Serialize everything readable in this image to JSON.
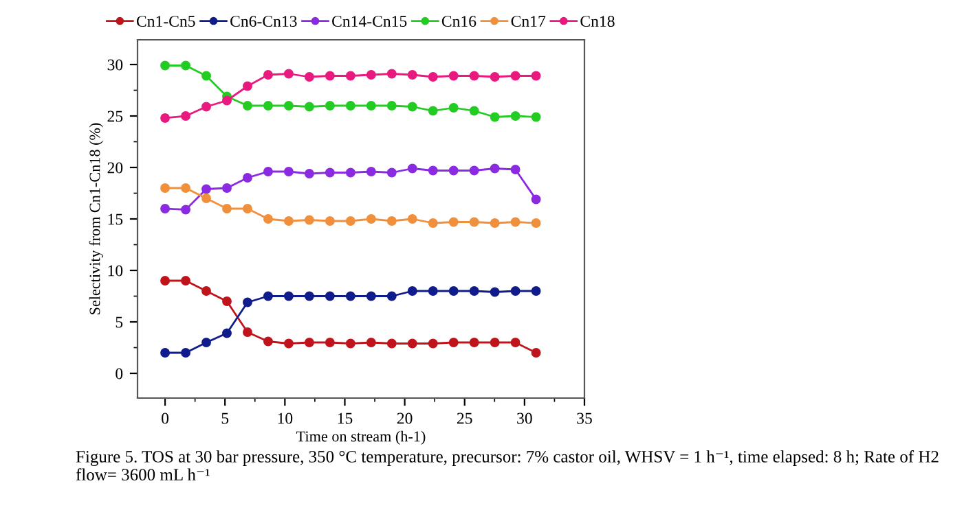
{
  "chart_data": {
    "type": "line",
    "xlabel": "Time on stream (h-1)",
    "ylabel": "Selectivity from Cn1-Cn18 (%)",
    "x": [
      0,
      1.72,
      3.44,
      5.16,
      6.88,
      8.6,
      10.32,
      12.04,
      13.76,
      15.48,
      17.2,
      18.92,
      20.64,
      22.36,
      24.08,
      25.8,
      27.52,
      29.24,
      30.96
    ],
    "series": [
      {
        "name": "Cn1-Cn5",
        "color": "#c0141c",
        "values": [
          9,
          9,
          8,
          7,
          4,
          3.1,
          2.9,
          3,
          3,
          2.9,
          3,
          2.9,
          2.9,
          2.9,
          3,
          3,
          3,
          3,
          2
        ]
      },
      {
        "name": "Cn6-Cn13",
        "color": "#101c8c",
        "values": [
          2,
          2,
          3,
          3.9,
          6.9,
          7.5,
          7.5,
          7.5,
          7.5,
          7.5,
          7.5,
          7.5,
          8,
          8,
          8,
          8,
          7.9,
          8,
          8
        ]
      },
      {
        "name": "Cn14-Cn15",
        "color": "#8a2be2",
        "values": [
          16,
          15.9,
          17.9,
          18,
          19,
          19.6,
          19.6,
          19.4,
          19.5,
          19.5,
          19.6,
          19.5,
          19.9,
          19.7,
          19.7,
          19.7,
          19.9,
          19.8,
          16.9
        ]
      },
      {
        "name": "Cn16",
        "color": "#22cc22",
        "values": [
          29.9,
          29.9,
          28.9,
          26.9,
          26,
          26,
          26,
          25.9,
          26,
          26,
          26,
          26,
          25.9,
          25.5,
          25.8,
          25.5,
          24.9,
          25,
          24.9
        ]
      },
      {
        "name": "Cn17",
        "color": "#f0903c",
        "values": [
          18,
          18,
          17,
          16,
          16,
          15,
          14.8,
          14.9,
          14.8,
          14.8,
          15,
          14.8,
          15,
          14.6,
          14.7,
          14.7,
          14.6,
          14.7,
          14.6
        ]
      },
      {
        "name": "Cn18",
        "color": "#e8197f",
        "values": [
          24.8,
          25,
          25.9,
          26.5,
          27.9,
          29,
          29.1,
          28.8,
          28.9,
          28.9,
          29,
          29.1,
          29,
          28.8,
          28.9,
          28.9,
          28.8,
          28.9,
          28.9
        ]
      }
    ],
    "xlim": [
      -2.3,
      35
    ],
    "xticks": [
      0,
      5,
      10,
      15,
      20,
      25,
      30,
      35
    ],
    "ylim": [
      -2.4,
      32.4
    ],
    "yticks": [
      0,
      5,
      10,
      15,
      20,
      25,
      30
    ],
    "grid": false,
    "legend": "top",
    "marker": "circle",
    "line_style": "solid",
    "annotations": [
      "Figure 5. TOS at 30 bar pressure, 350 °C temperature, precursor: 7% castor oil, WHSV = 1 h⁻¹, time elapsed: 8 h; Rate of H2 flow= 3600 mL h⁻¹"
    ]
  }
}
